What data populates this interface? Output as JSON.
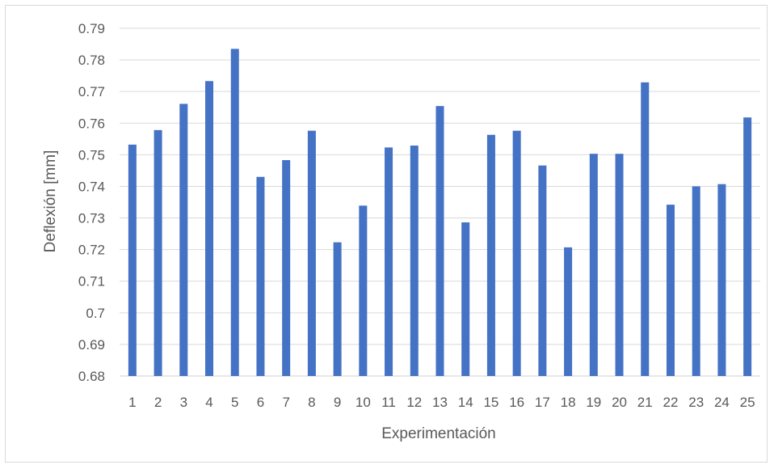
{
  "chart_data": {
    "type": "bar",
    "title": "",
    "xlabel": "Experimentación",
    "ylabel": "Deflexión [mm]",
    "ylim": [
      0.68,
      0.79
    ],
    "ytick_step": 0.01,
    "ytick_labels": [
      "0.68",
      "0.69",
      "0.7",
      "0.71",
      "0.72",
      "0.73",
      "0.74",
      "0.75",
      "0.76",
      "0.77",
      "0.78",
      "0.79"
    ],
    "categories": [
      "1",
      "2",
      "3",
      "4",
      "5",
      "6",
      "7",
      "8",
      "9",
      "10",
      "11",
      "12",
      "13",
      "14",
      "15",
      "16",
      "17",
      "18",
      "19",
      "20",
      "21",
      "22",
      "23",
      "24",
      "25"
    ],
    "series": [
      {
        "values": [
          0.7532,
          0.7578,
          0.7661,
          0.7733,
          0.7835,
          0.743,
          0.7483,
          0.7576,
          0.7223,
          0.7339,
          0.7523,
          0.7529,
          0.7654,
          0.7286,
          0.7563,
          0.7576,
          0.7466,
          0.7207,
          0.7503,
          0.7503,
          0.7729,
          0.7342,
          0.74,
          0.7407,
          0.7618
        ],
        "color": "#4472c4"
      }
    ],
    "grid": true,
    "legend": "none"
  }
}
